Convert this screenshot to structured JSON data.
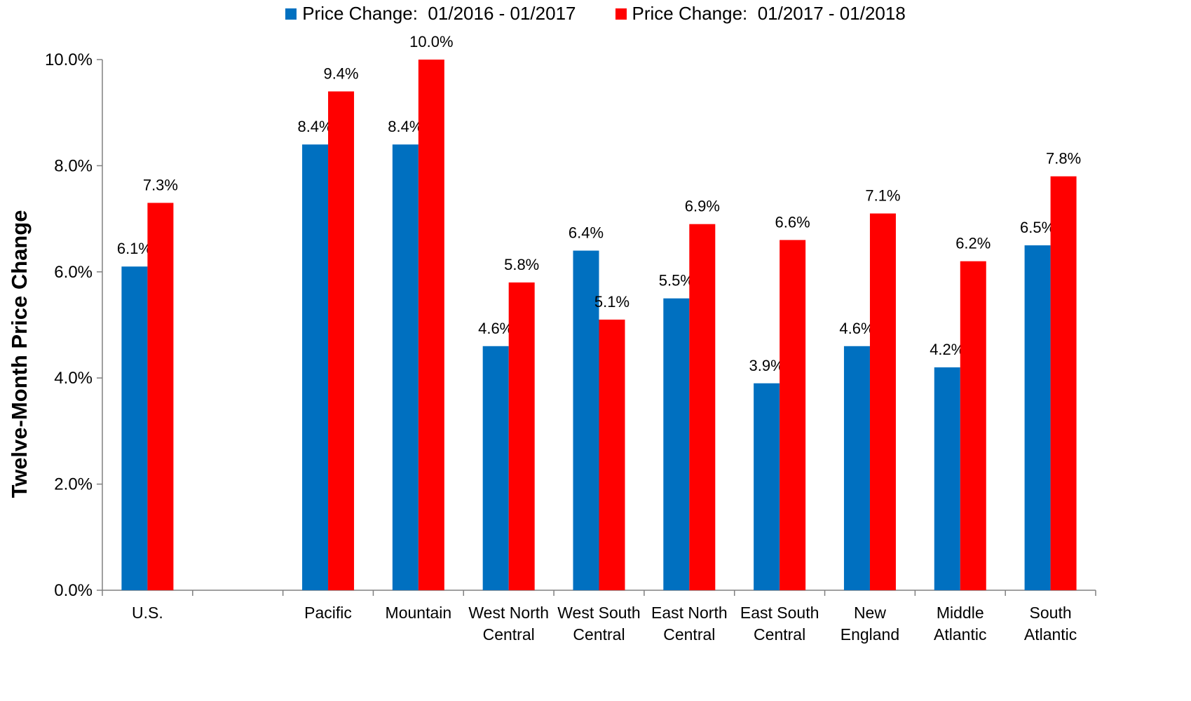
{
  "chart_data": {
    "type": "bar",
    "title": "",
    "xlabel": "",
    "ylabel": "Twelve-Month Price Change",
    "ylim": [
      0,
      10
    ],
    "yticks": [
      "0.0%",
      "2.0%",
      "4.0%",
      "6.0%",
      "8.0%",
      "10.0%"
    ],
    "legend_position": "top-center",
    "grid": false,
    "categories": [
      [
        "U.S."
      ],
      [
        ""
      ],
      [
        "Pacific"
      ],
      [
        "Mountain"
      ],
      [
        "West North",
        "Central"
      ],
      [
        "West South",
        "Central"
      ],
      [
        "East North",
        "Central"
      ],
      [
        "East South",
        "Central"
      ],
      [
        "New",
        "England"
      ],
      [
        "Middle",
        "Atlantic"
      ],
      [
        "South",
        "Atlantic"
      ]
    ],
    "series": [
      {
        "name": "Price Change:  01/2016 - 01/2017",
        "color": "#0070C0",
        "values": [
          6.1,
          null,
          8.4,
          8.4,
          4.6,
          6.4,
          5.5,
          3.9,
          4.6,
          4.2,
          6.5
        ],
        "labels": [
          "6.1%",
          "",
          "8.4%",
          "8.4%",
          "4.6%",
          "6.4%",
          "5.5%",
          "3.9%",
          "4.6%",
          "4.2%",
          "6.5%"
        ]
      },
      {
        "name": "Price Change:  01/2017 - 01/2018",
        "color": "#FF0000",
        "values": [
          7.3,
          null,
          9.4,
          10.0,
          5.8,
          5.1,
          6.9,
          6.6,
          7.1,
          6.2,
          7.8
        ],
        "labels": [
          "7.3%",
          "",
          "9.4%",
          "10.0%",
          "5.8%",
          "5.1%",
          "6.9%",
          "6.6%",
          "7.1%",
          "6.2%",
          "7.8%"
        ]
      }
    ]
  }
}
